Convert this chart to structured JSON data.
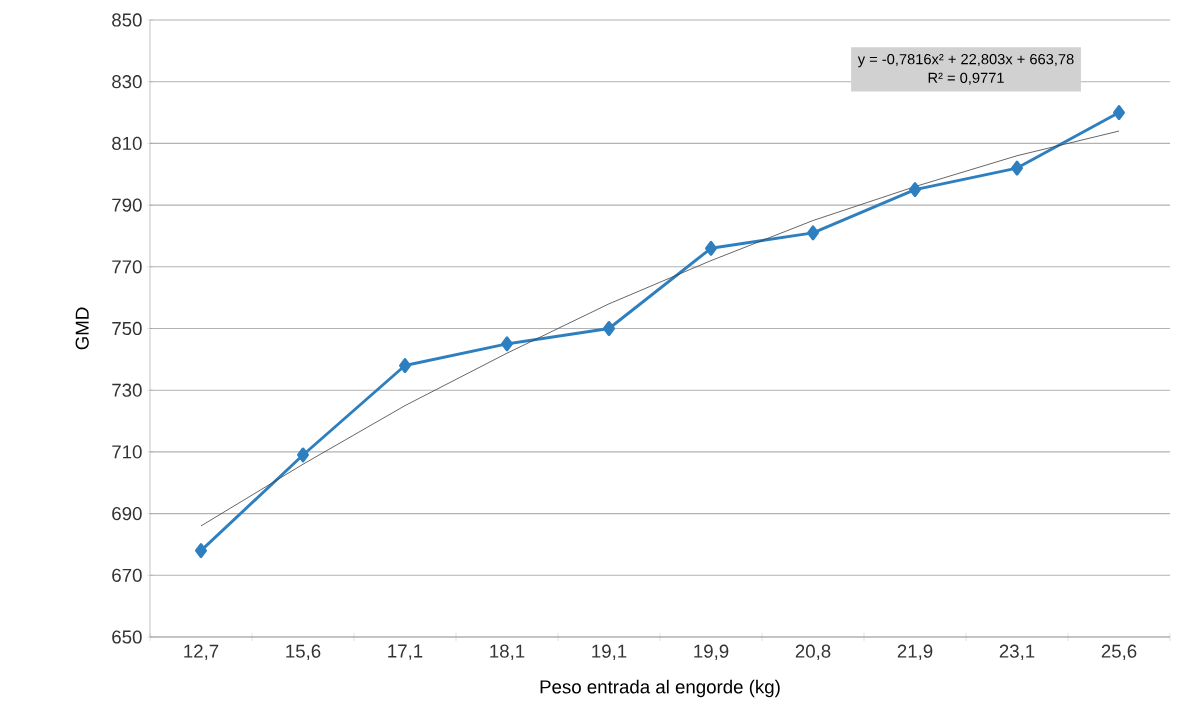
{
  "chart_data": {
    "type": "line",
    "xlabel": "Peso entrada al engorde (kg)",
    "ylabel": "GMD",
    "categories": [
      "12,7",
      "15,6",
      "17,1",
      "18,1",
      "19,1",
      "19,9",
      "20,8",
      "21,9",
      "23,1",
      "25,6"
    ],
    "series": [
      {
        "color": "#2e7fbf",
        "marker": "diamond",
        "values": [
          678,
          709,
          738,
          745,
          750,
          776,
          781,
          795,
          802,
          820
        ]
      },
      {
        "color": "#404040",
        "marker": "none",
        "values": [
          686,
          706,
          725,
          742,
          758,
          772,
          785,
          796,
          806,
          814
        ]
      }
    ],
    "ylim": [
      650,
      850
    ],
    "yticks": [
      650,
      670,
      690,
      710,
      730,
      750,
      770,
      790,
      810,
      830,
      850
    ],
    "grid": "y",
    "annotations": [
      "y = -0,7816x² + 22,803x + 663,78",
      "R² = 0,9771"
    ]
  }
}
